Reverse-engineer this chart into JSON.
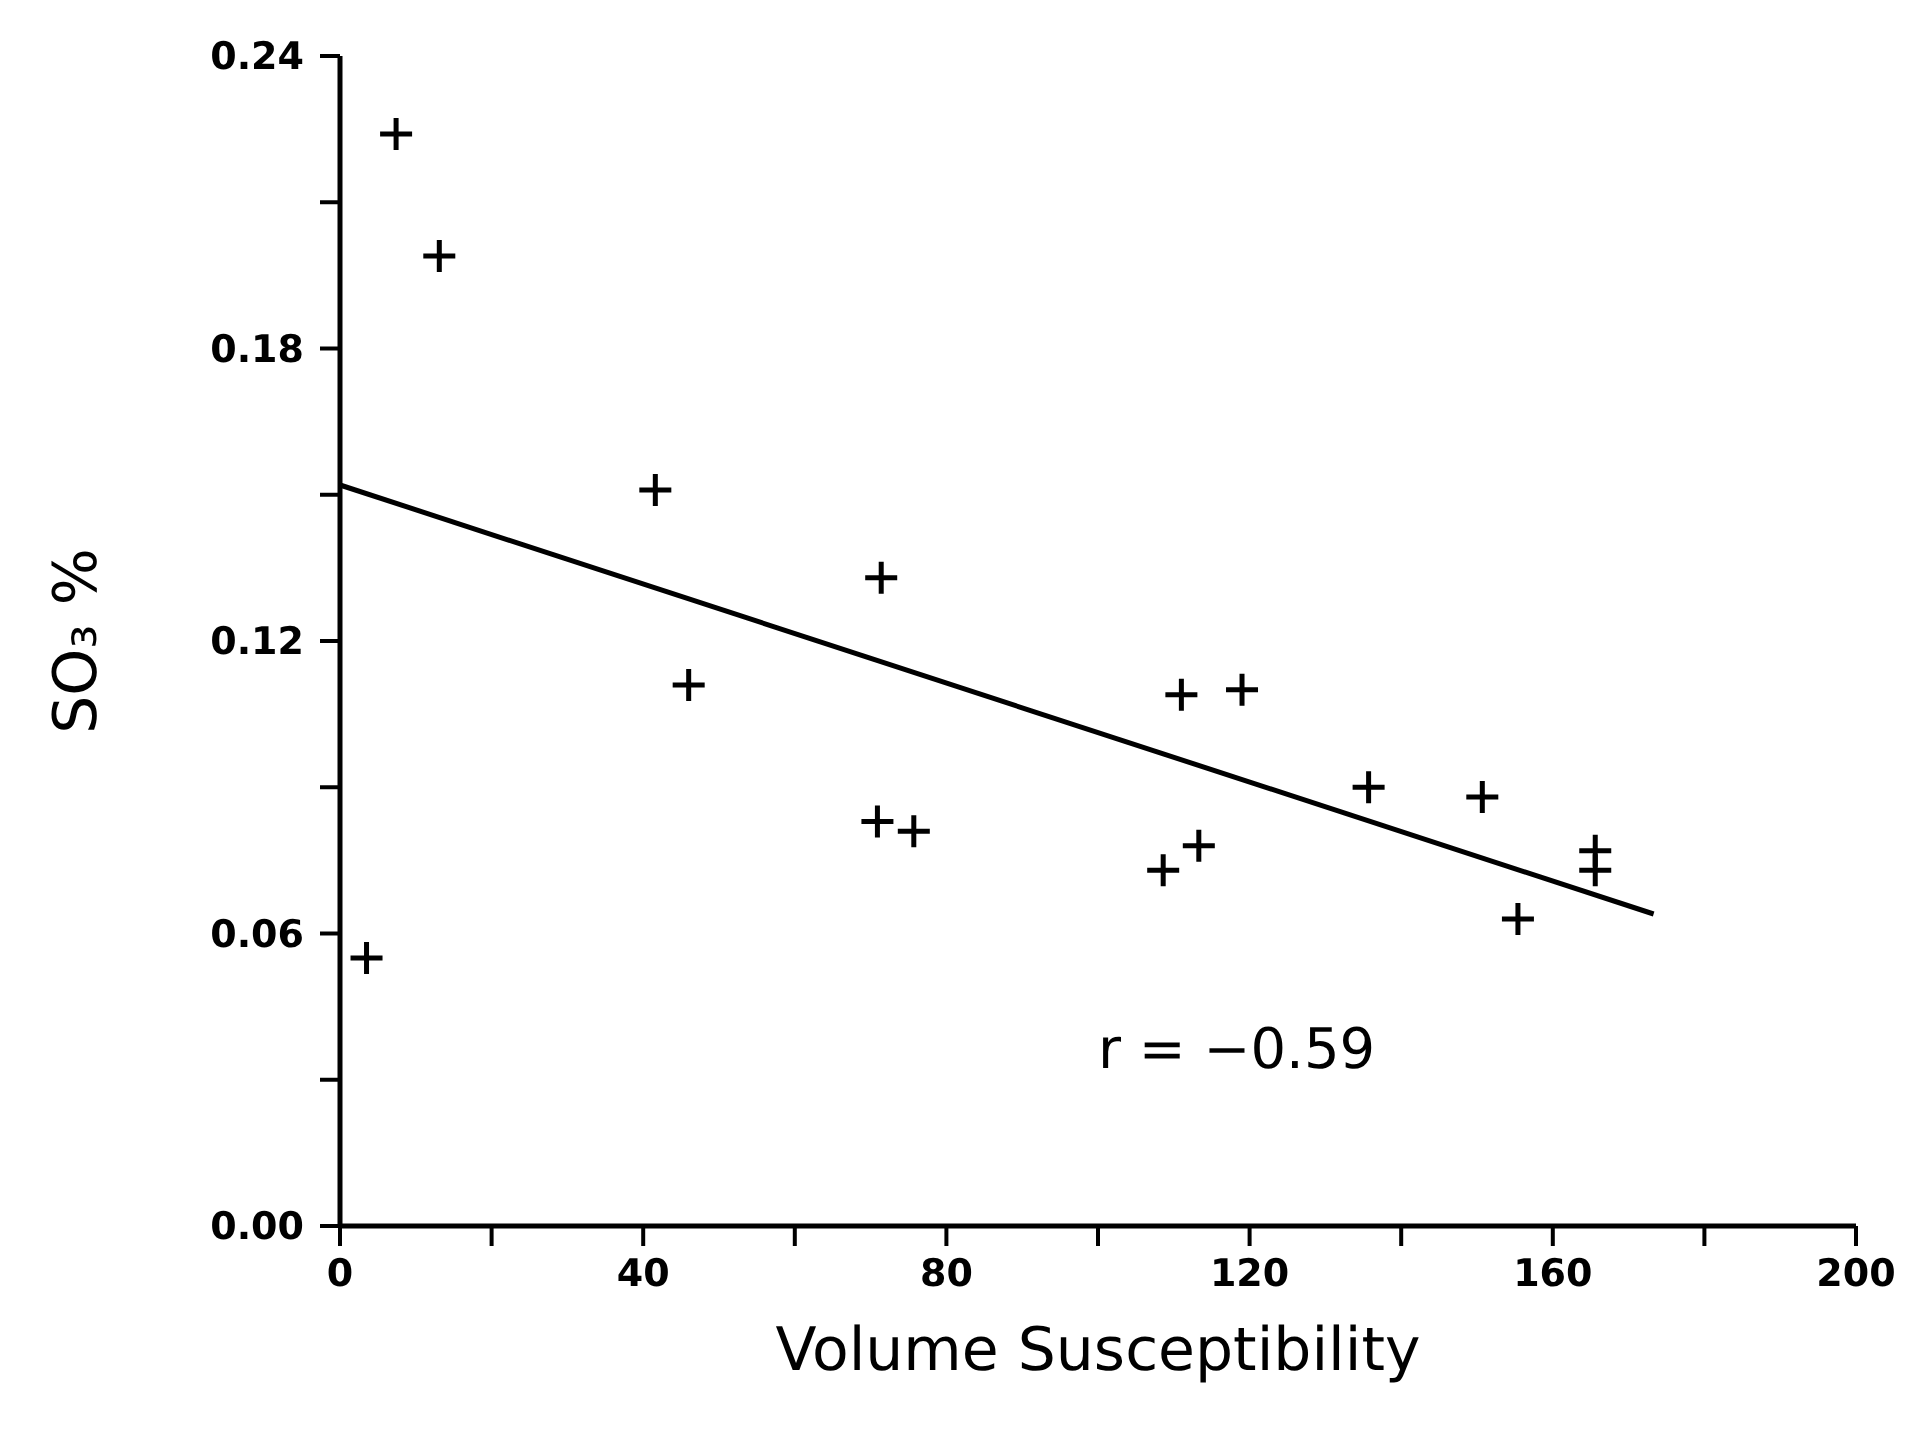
{
  "chart_data": {
    "type": "scatter",
    "xlabel": "Volume Susceptibility",
    "ylabel": "SO₃ %",
    "marker": "cross",
    "grid": false,
    "xlim": [
      0,
      200
    ],
    "ylim": [
      0,
      0.24
    ],
    "xticks": [
      0,
      {
        "value": 20,
        "label": null
      },
      40,
      {
        "value": 60,
        "label": null
      },
      80,
      {
        "value": 100,
        "label": null
      },
      120,
      {
        "value": 140,
        "label": null
      },
      160,
      {
        "value": 180,
        "label": null
      },
      200
    ],
    "yticks": [
      {
        "value": 0,
        "label": "0.00"
      },
      {
        "value": 0.03,
        "label": null
      },
      {
        "value": 0.06,
        "label": "0.06"
      },
      {
        "value": 0.09,
        "label": null
      },
      {
        "value": 0.12,
        "label": "0.12"
      },
      {
        "value": 0.15,
        "label": null
      },
      {
        "value": 0.18,
        "label": "0.18"
      },
      {
        "value": 0.21,
        "label": null
      },
      {
        "value": 0.24,
        "label": "0.24"
      }
    ],
    "series": [
      {
        "color": "#000000",
        "x": [
          7.4,
          13.1,
          41.6,
          71.4,
          46.0,
          70.9,
          75.7,
          3.5,
          111.0,
          119.0,
          135.7,
          150.7,
          108.6,
          113.3,
          165.6,
          165.6,
          155.4
        ],
        "values": [
          0.224,
          0.199,
          0.151,
          0.133,
          0.111,
          0.083,
          0.081,
          0.055,
          0.109,
          0.11,
          0.09,
          0.088,
          0.073,
          0.078,
          0.077,
          0.073,
          0.063
        ]
      },
      {
        "type": "line",
        "marker": "none",
        "color": "#000000",
        "x": [
          0,
          173.3
        ],
        "values": [
          0.152,
          0.064
        ]
      }
    ],
    "annotations": [
      "r = −0.59"
    ]
  }
}
